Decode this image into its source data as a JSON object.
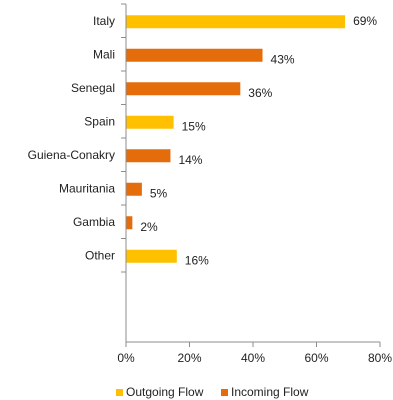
{
  "chart_data": {
    "type": "bar",
    "orientation": "horizontal",
    "categories": [
      "Italy",
      "Mali",
      "Senegal",
      "Spain",
      "Guiena-Conakry",
      "Mauritania",
      "Gambia",
      "Other"
    ],
    "values": [
      69,
      43,
      36,
      15,
      14,
      5,
      2,
      16
    ],
    "value_labels": [
      "69%",
      "43%",
      "36%",
      "15%",
      "14%",
      "5%",
      "2%",
      "16%"
    ],
    "bar_series": [
      "Outgoing Flow",
      "Incoming Flow",
      "Incoming Flow",
      "Outgoing Flow",
      "Incoming Flow",
      "Incoming Flow",
      "Incoming Flow",
      "Outgoing Flow"
    ],
    "series": [
      {
        "name": "Outgoing Flow",
        "color": "#FFC000"
      },
      {
        "name": "Incoming Flow",
        "color": "#E46C0A"
      }
    ],
    "xlim": [
      0,
      80
    ],
    "x_ticks": [
      0,
      20,
      40,
      60,
      80
    ],
    "x_tick_labels": [
      "0%",
      "20%",
      "40%",
      "60%",
      "80%"
    ],
    "title": "",
    "xlabel": "",
    "ylabel": "",
    "grid": false,
    "legend_position": "bottom"
  }
}
